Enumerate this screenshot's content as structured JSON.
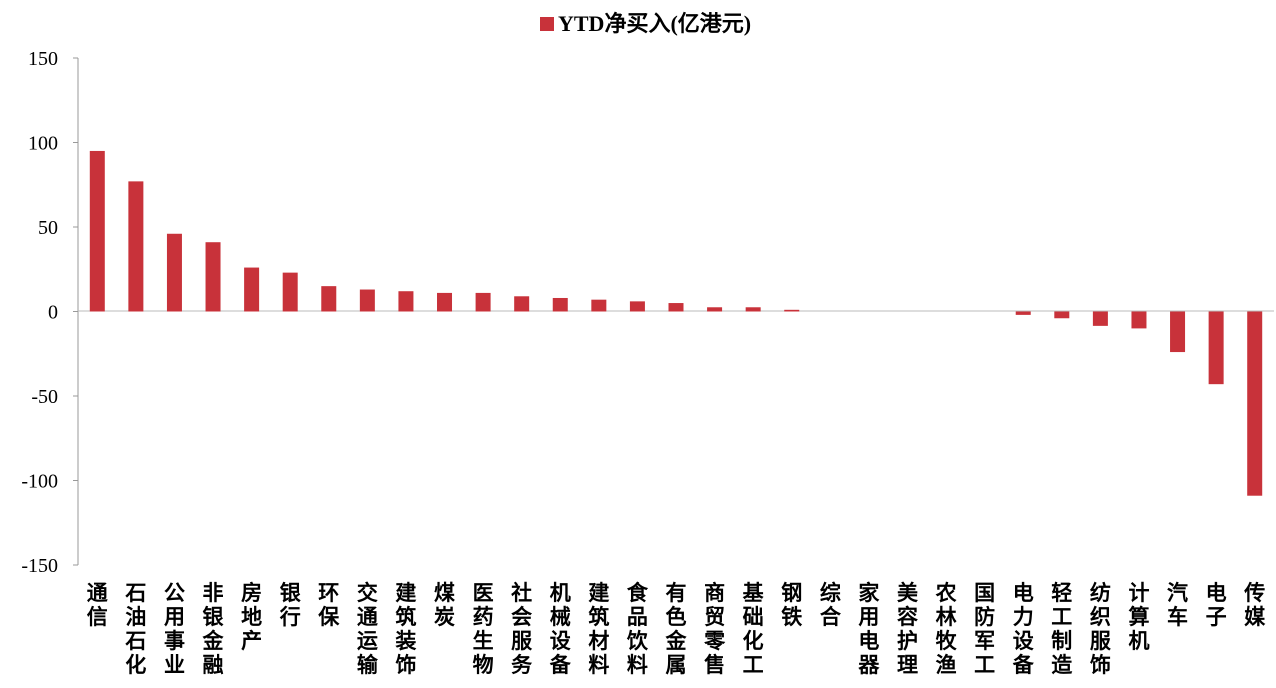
{
  "chart_data": {
    "type": "bar",
    "series": [
      {
        "name": "YTD净买入(亿港元)",
        "color": "#C8323A",
        "values": [
          95,
          77,
          46,
          41,
          26,
          23,
          15,
          13,
          12,
          11,
          11,
          9,
          8,
          7,
          6,
          5,
          2.5,
          2.5,
          1,
          0,
          0,
          0,
          0,
          0,
          -2,
          -4,
          -8.5,
          -10,
          -24,
          -43,
          -109
        ]
      }
    ],
    "categories": [
      "通信",
      "石油石化",
      "公用事业",
      "非银金融",
      "房地产",
      "银行",
      "环保",
      "交通运输",
      "建筑装饰",
      "煤炭",
      "医药生物",
      "社会服务",
      "机械设备",
      "建筑材料",
      "食品饮料",
      "有色金属",
      "商贸零售",
      "基础化工",
      "钢铁",
      "综合",
      "家用电器",
      "美容护理",
      "农林牧渔",
      "国防军工",
      "电力设备",
      "轻工制造",
      "纺织服饰",
      "计算机",
      "汽车",
      "电子",
      "传媒"
    ],
    "yticks": [
      "150",
      "100",
      "50",
      "0",
      "-50",
      "-100",
      "-150"
    ],
    "ylim": [
      -150,
      150
    ],
    "legend_position": "top",
    "grid": false
  }
}
